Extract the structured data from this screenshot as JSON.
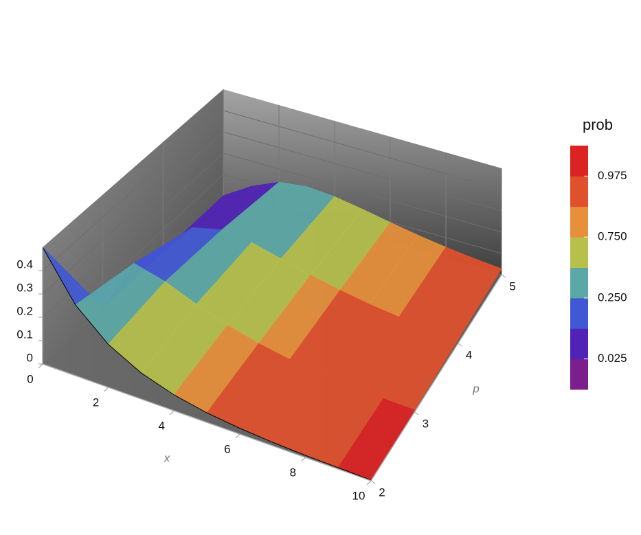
{
  "chart_data": {
    "type": "surface3d",
    "x_label": "x",
    "p_label": "p",
    "x": [
      0,
      1,
      2,
      3,
      4,
      5,
      6,
      7,
      8,
      9,
      10
    ],
    "p": [
      2,
      3,
      4,
      5
    ],
    "z": [
      [
        0.5,
        0.303,
        0.184,
        0.112,
        0.068,
        0.041,
        0.025,
        0.015,
        0.009,
        0.006,
        0.003
      ],
      [
        0,
        0.242,
        0.208,
        0.154,
        0.108,
        0.073,
        0.048,
        0.032,
        0.021,
        0.013,
        0.009
      ],
      [
        0,
        0.152,
        0.184,
        0.167,
        0.135,
        0.103,
        0.075,
        0.053,
        0.037,
        0.025,
        0.017
      ],
      [
        0,
        0.081,
        0.138,
        0.154,
        0.144,
        0.122,
        0.097,
        0.074,
        0.055,
        0.04,
        0.028
      ]
    ],
    "prob": [
      [
        0,
        0.393,
        0.632,
        0.777,
        0.865,
        0.918,
        0.95,
        0.97,
        0.982,
        0.989,
        0.993
      ],
      [
        0,
        0.199,
        0.428,
        0.608,
        0.739,
        0.828,
        0.888,
        0.928,
        0.954,
        0.971,
        0.981
      ],
      [
        0,
        0.09,
        0.264,
        0.442,
        0.594,
        0.713,
        0.801,
        0.864,
        0.908,
        0.939,
        0.96
      ],
      [
        0,
        0.037,
        0.151,
        0.3,
        0.451,
        0.584,
        0.694,
        0.779,
        0.844,
        0.891,
        0.925
      ]
    ],
    "xlim": [
      0,
      10
    ],
    "xticks": [
      0,
      2,
      4,
      6,
      8,
      10
    ],
    "plim": [
      2,
      5
    ],
    "pticks": [
      2,
      3,
      4,
      5
    ],
    "zlim": [
      0,
      0.5
    ],
    "zticks": [
      0,
      0.1,
      0.2,
      0.3,
      0.4
    ],
    "grid": true,
    "colorbar": {
      "title": "prob",
      "lim": [
        0,
        1
      ],
      "ticks": [
        0.025,
        {
          "value": 0.25,
          "label": "0.250"
        },
        {
          "value": 0.75,
          "label": "0.750"
        },
        0.975
      ],
      "colors": [
        "#7b1e8e",
        "#5022b5",
        "#4158d4",
        "#5ba8a6",
        "#b6c04b",
        "#e78f3b",
        "#e0502c",
        "#dd2222"
      ]
    }
  }
}
